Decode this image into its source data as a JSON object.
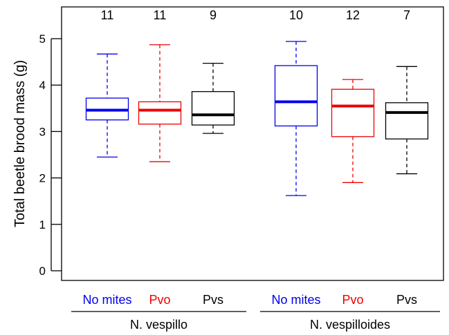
{
  "chart_data": {
    "type": "boxplot",
    "ylabel": "Total beetle brood mass (g)",
    "ylim": [
      -0.2,
      5.5
    ],
    "yticks": [
      0,
      1,
      2,
      3,
      4,
      5
    ],
    "grid": false,
    "groups": [
      {
        "label": "N. vespillo",
        "boxes": [
          {
            "label": "No mites",
            "color": "#0000ee",
            "n": "11",
            "min": 2.45,
            "q1": 3.25,
            "median": 3.46,
            "q3": 3.72,
            "max": 4.67
          },
          {
            "label": "Pvo",
            "color": "#ee0000",
            "n": "11",
            "min": 2.35,
            "q1": 3.16,
            "median": 3.46,
            "q3": 3.64,
            "max": 4.87
          },
          {
            "label": "Pvs",
            "color": "#000000",
            "n": "9",
            "min": 2.96,
            "q1": 3.14,
            "median": 3.36,
            "q3": 3.86,
            "max": 4.47
          }
        ]
      },
      {
        "label": "N. vespilloides",
        "boxes": [
          {
            "label": "No mites",
            "color": "#0000ee",
            "n": "10",
            "min": 1.62,
            "q1": 3.12,
            "median": 3.64,
            "q3": 4.42,
            "max": 4.94
          },
          {
            "label": "Pvo",
            "color": "#ee0000",
            "n": "12",
            "min": 1.9,
            "q1": 2.89,
            "median": 3.55,
            "q3": 3.91,
            "max": 4.12
          },
          {
            "label": "Pvs",
            "color": "#000000",
            "n": "7",
            "min": 2.09,
            "q1": 2.84,
            "median": 3.41,
            "q3": 3.62,
            "max": 4.4
          }
        ]
      }
    ]
  }
}
